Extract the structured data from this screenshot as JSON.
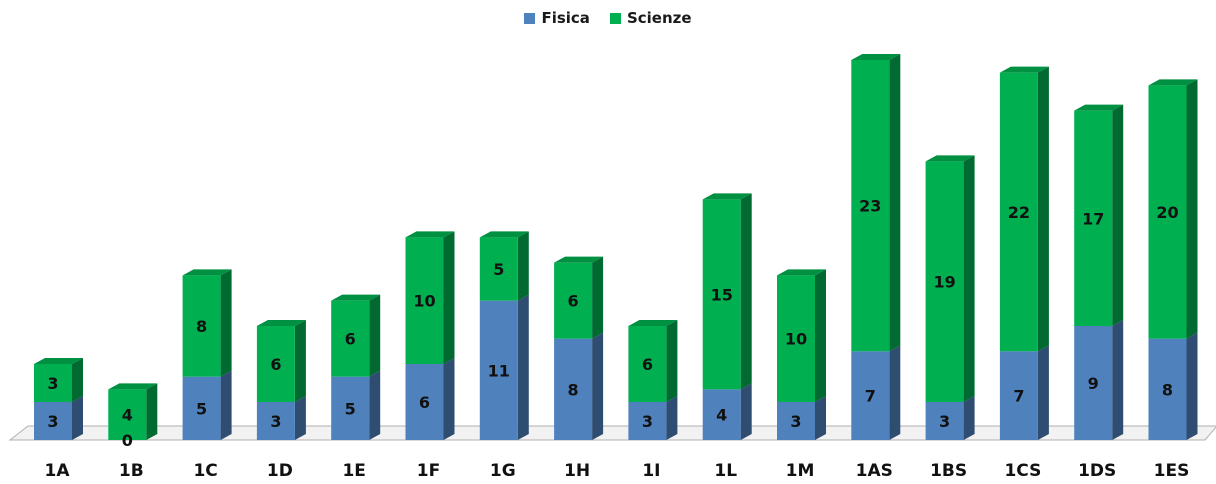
{
  "chart_data": {
    "type": "bar",
    "stacked": true,
    "style": "3d",
    "categories": [
      "1A",
      "1B",
      "1C",
      "1D",
      "1E",
      "1F",
      "1G",
      "1H",
      "1I",
      "1L",
      "1M",
      "1AS",
      "1BS",
      "1CS",
      "1DS",
      "1ES"
    ],
    "series": [
      {
        "name": "Fisica",
        "values": [
          3,
          0,
          5,
          3,
          5,
          6,
          11,
          8,
          3,
          4,
          3,
          7,
          3,
          7,
          9,
          8
        ]
      },
      {
        "name": "Scienze",
        "values": [
          3,
          4,
          8,
          6,
          6,
          10,
          5,
          6,
          6,
          15,
          10,
          23,
          19,
          22,
          17,
          20
        ]
      }
    ],
    "ylim": [
      0,
      30
    ],
    "grid": false,
    "legend_position": "top-center",
    "title": "",
    "xlabel": "",
    "ylabel": ""
  },
  "colors": {
    "Fisica": "#4f81bd",
    "Scienze": "#00b050"
  }
}
